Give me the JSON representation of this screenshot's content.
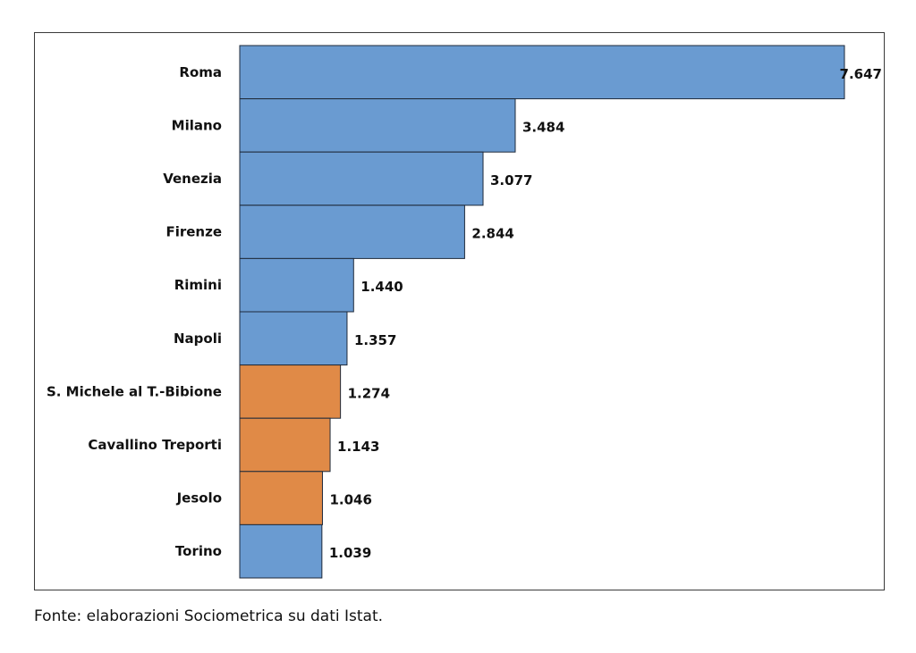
{
  "chart_data": {
    "type": "bar",
    "orientation": "horizontal",
    "categories": [
      "Roma",
      "Milano",
      "Venezia",
      "Firenze",
      "Rimini",
      "Napoli",
      "S. Michele al T.-Bibione",
      "Cavallino Treporti",
      "Jesolo",
      "Torino"
    ],
    "values": [
      7647,
      3484,
      3077,
      2844,
      1440,
      1357,
      1274,
      1143,
      1046,
      1039
    ],
    "value_labels": [
      "7.647",
      "3.484",
      "3.077",
      "2.844",
      "1.440",
      "1.357",
      "1.274",
      "1.143",
      "1.046",
      "1.039"
    ],
    "bar_colors": [
      "#6a9bd1",
      "#6a9bd1",
      "#6a9bd1",
      "#6a9bd1",
      "#6a9bd1",
      "#6a9bd1",
      "#e08a47",
      "#e08a47",
      "#e08a47",
      "#6a9bd1"
    ],
    "xlim": [
      0,
      7647
    ],
    "title": "",
    "xlabel": "",
    "ylabel": "",
    "grid": false,
    "legend": "none"
  },
  "source_note": "Fonte: elaborazioni Sociometrica su dati Istat."
}
